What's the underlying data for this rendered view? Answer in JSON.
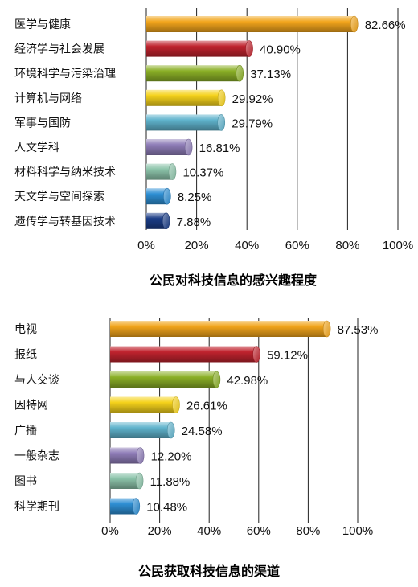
{
  "palette": [
    "#f2a51c",
    "#c0232e",
    "#8bb027",
    "#f5d21b",
    "#5fb3cc",
    "#8f7db8",
    "#8cc4aa",
    "#2e8fd4",
    "#1a3c86"
  ],
  "chart_data": [
    {
      "type": "bar",
      "orientation": "horizontal",
      "title": "公民对科技信息的感兴趣程度",
      "categories": [
        "医学与健康",
        "经济学与社会发展",
        "环境科学与污染治理",
        "计算机与网络",
        "军事与国防",
        "人文学科",
        "材料科学与纳米技术",
        "天文学与空间探索",
        "遗传学与转基因技术"
      ],
      "values": [
        82.66,
        40.9,
        37.13,
        29.92,
        29.79,
        16.81,
        10.37,
        8.25,
        7.88
      ],
      "value_labels": [
        "82.66%",
        "40.90%",
        "37.13%",
        "29.92%",
        "29.79%",
        "16.81%",
        "10.37%",
        "8.25%",
        "7.88%"
      ],
      "xlim": [
        0,
        100
      ],
      "x_ticks": [
        "0%",
        "20%",
        "40%",
        "60%",
        "80%",
        "100%"
      ],
      "grid": true
    },
    {
      "type": "bar",
      "orientation": "horizontal",
      "title": "公民获取科技信息的渠道",
      "categories": [
        "电视",
        "报纸",
        "与人交谈",
        "因特网",
        "广播",
        "一般杂志",
        "图书",
        "科学期刊"
      ],
      "values": [
        87.53,
        59.12,
        42.98,
        26.61,
        24.58,
        12.2,
        11.88,
        10.48
      ],
      "value_labels": [
        "87.53%",
        "59.12%",
        "42.98%",
        "26.61%",
        "24.58%",
        "12.20%",
        "11.88%",
        "10.48%"
      ],
      "xlim": [
        0,
        100
      ],
      "x_ticks": [
        "0%",
        "20%",
        "40%",
        "60%",
        "80%",
        "100%"
      ],
      "grid": true
    }
  ]
}
